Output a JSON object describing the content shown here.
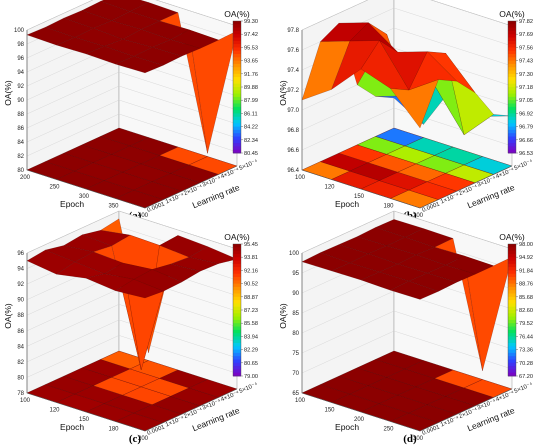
{
  "colorbar_stops": [
    "#8000c0",
    "#3040ff",
    "#00c8ff",
    "#00e060",
    "#a0f000",
    "#ffe000",
    "#ff9000",
    "#ff3000",
    "#cc0000",
    "#8a0000"
  ],
  "chart_data": [
    {
      "type": "surface3d",
      "panel_label": "(a)",
      "zlabel": "OA(%)",
      "xlabel": "Epoch",
      "ylabel": "Learning rate",
      "colorbar_title": "OA(%)",
      "colorbar_ticks": [
        "99.30",
        "97.42",
        "95.53",
        "93.65",
        "91.76",
        "89.88",
        "87.99",
        "86.11",
        "84.22",
        "82.34",
        "80.45"
      ],
      "z_ticks": [
        "100",
        "98",
        "96",
        "94",
        "92",
        "90",
        "88",
        "86",
        "84",
        "82",
        "80"
      ],
      "x_ticks": [
        "200",
        "250",
        "300",
        "350",
        "400"
      ],
      "y_ticks": [
        "0.0001",
        "1×10⁻⁴",
        "2×10⁻⁴",
        "3×10⁻⁴",
        "4×10⁻⁴",
        "5×10⁻⁴"
      ],
      "zlim": [
        80,
        100
      ],
      "z": [
        [
          99.3,
          99.2,
          99.3,
          99.2,
          99.3
        ],
        [
          99.2,
          99.1,
          99.2,
          99.1,
          99.2
        ],
        [
          99.3,
          99.2,
          99.0,
          99.2,
          99.3
        ],
        [
          99.2,
          99.1,
          99.2,
          99.1,
          99.2
        ],
        [
          99.3,
          99.2,
          99.2,
          99.3,
          99.2
        ],
        [
          99.2,
          99.3,
          99.2,
          80.45,
          99.3
        ]
      ]
    },
    {
      "type": "surface3d",
      "panel_label": "(b)",
      "zlabel": "OA(%)",
      "xlabel": "Epoch",
      "ylabel": "Learning rate",
      "colorbar_title": "OA(%)",
      "colorbar_ticks": [
        "97.82",
        "97.69",
        "97.56",
        "97.43",
        "97.30",
        "97.18",
        "97.05",
        "96.92",
        "96.79",
        "96.66",
        "96.53"
      ],
      "z_ticks": [
        "97.8",
        "97.6",
        "97.4",
        "97.2",
        "97.0",
        "96.8",
        "96.6",
        "96.4"
      ],
      "x_ticks": [
        "100",
        "120",
        "150",
        "180",
        "200"
      ],
      "y_ticks": [
        "0.0001",
        "1×10⁻⁴",
        "2×10⁻⁴",
        "3×10⁻⁴",
        "4×10⁻⁴",
        "5×10⁻⁴"
      ],
      "zlim": [
        96.4,
        97.8
      ],
      "z": [
        [
          97.1,
          97.3,
          97.6,
          97.5,
          97.2
        ],
        [
          97.6,
          97.7,
          97.8,
          97.4,
          97.6
        ],
        [
          97.7,
          97.8,
          97.6,
          97.7,
          97.5
        ],
        [
          97.0,
          97.6,
          96.9,
          97.6,
          97.3
        ],
        [
          96.8,
          96.9,
          97.1,
          96.7,
          97.0
        ],
        [
          96.7,
          96.53,
          97.0,
          96.8,
          96.9
        ]
      ]
    },
    {
      "type": "surface3d",
      "panel_label": "(c)",
      "zlabel": "OA(%)",
      "xlabel": "Epoch",
      "ylabel": "Learning rate",
      "colorbar_title": "OA(%)",
      "colorbar_ticks": [
        "95.45",
        "93.81",
        "92.16",
        "90.52",
        "88.87",
        "87.23",
        "85.58",
        "83.94",
        "82.29",
        "80.65",
        "79.00"
      ],
      "z_ticks": [
        "96",
        "94",
        "92",
        "90",
        "88",
        "86",
        "84",
        "82",
        "80",
        "78"
      ],
      "x_ticks": [
        "100",
        "120",
        "150",
        "180",
        "200"
      ],
      "y_ticks": [
        "0.0001",
        "1×10⁻⁴",
        "2×10⁻⁴",
        "3×10⁻⁴",
        "4×10⁻⁴",
        "5×10⁻⁴"
      ],
      "zlim": [
        78,
        96
      ],
      "z": [
        [
          95.0,
          94.5,
          95.2,
          94.8,
          95.1
        ],
        [
          95.3,
          95.0,
          94.7,
          95.2,
          94.9
        ],
        [
          94.8,
          95.2,
          95.0,
          95.4,
          95.0
        ],
        [
          95.1,
          94.9,
          80.2,
          95.0,
          95.3
        ],
        [
          94.6,
          95.2,
          95.1,
          94.8,
          95.2
        ],
        [
          95.0,
          79.0,
          95.3,
          95.1,
          94.7
        ]
      ]
    },
    {
      "type": "surface3d",
      "panel_label": "(d)",
      "zlabel": "OA(%)",
      "xlabel": "Epoch",
      "ylabel": "Learning rate",
      "colorbar_title": "OA(%)",
      "colorbar_ticks": [
        "98.00",
        "94.92",
        "91.84",
        "88.76",
        "85.68",
        "82.60",
        "79.52",
        "76.44",
        "73.36",
        "70.28",
        "67.20"
      ],
      "z_ticks": [
        "100",
        "95",
        "90",
        "85",
        "80",
        "75",
        "70",
        "65"
      ],
      "x_ticks": [
        "100",
        "150",
        "200",
        "250",
        "300"
      ],
      "y_ticks": [
        "0.0001",
        "1×10⁻⁴",
        "2×10⁻⁴",
        "3×10⁻⁴",
        "4×10⁻⁴",
        "5×10⁻⁴"
      ],
      "zlim": [
        65,
        100
      ],
      "z": [
        [
          97.8,
          97.9,
          98.0,
          97.8,
          97.9
        ],
        [
          98.0,
          97.8,
          97.9,
          98.0,
          97.8
        ],
        [
          97.9,
          98.0,
          97.8,
          97.9,
          98.0
        ],
        [
          97.8,
          97.9,
          98.0,
          97.8,
          97.9
        ],
        [
          98.0,
          97.9,
          97.8,
          98.0,
          97.9
        ],
        [
          97.9,
          98.0,
          97.9,
          67.2,
          98.0
        ]
      ]
    }
  ]
}
